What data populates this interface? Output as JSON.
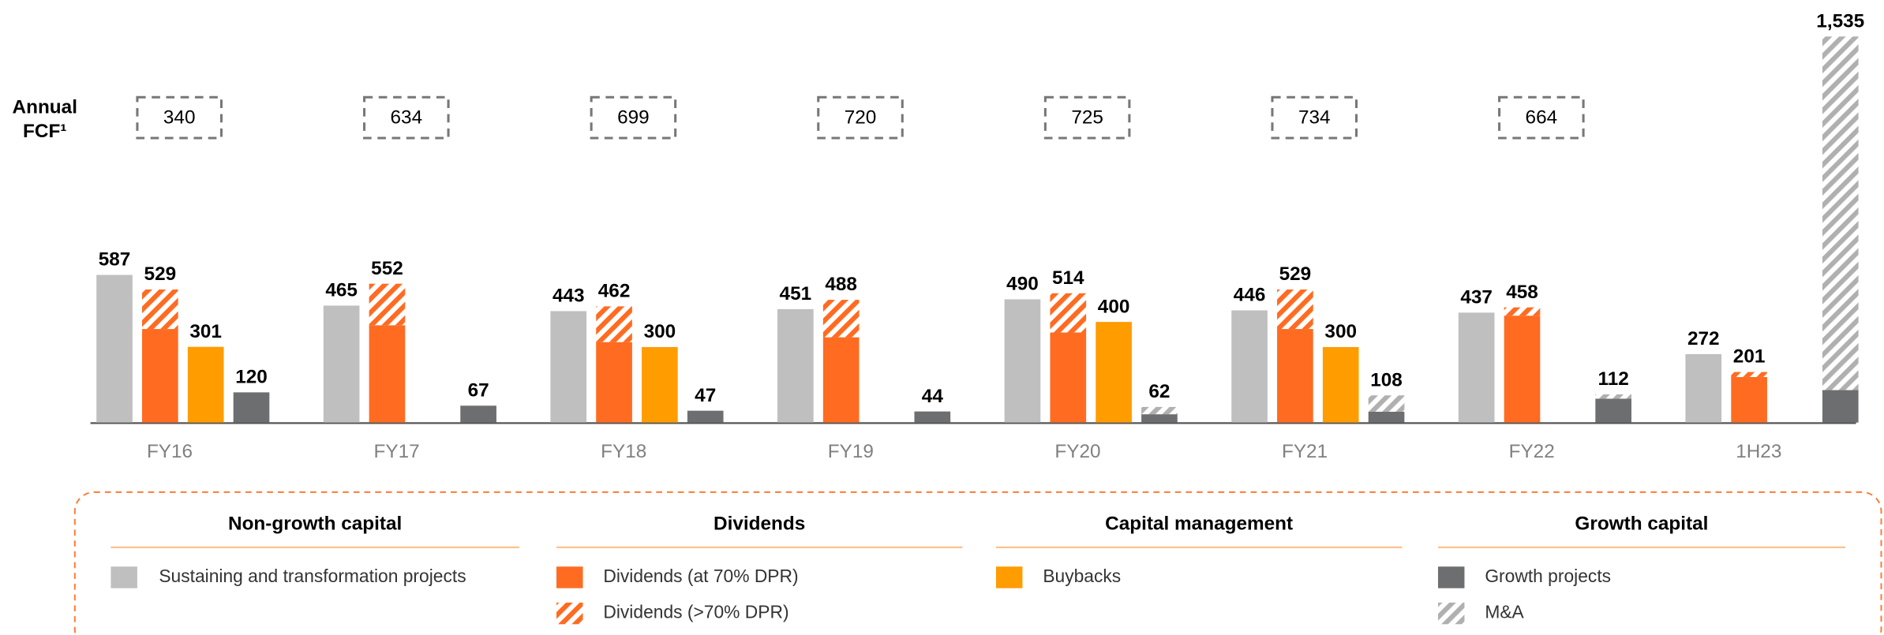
{
  "chart_data": {
    "type": "bar",
    "fcf_label": [
      "Annual",
      "FCF¹"
    ],
    "categories": [
      "FY16",
      "FY17",
      "FY18",
      "FY19",
      "FY20",
      "FY21",
      "FY22",
      "1H23"
    ],
    "fcf": [
      340,
      634,
      699,
      720,
      725,
      734,
      664,
      null
    ],
    "ylim": [
      0,
      1600
    ],
    "groups": [
      {
        "title": "Non-growth capital",
        "series": [
          {
            "name": "Sustaining and transformation projects",
            "color": "#bfbfbf",
            "hatch": false,
            "values": [
              587,
              465,
              443,
              451,
              490,
              446,
              437,
              272
            ]
          }
        ]
      },
      {
        "title": "Dividends",
        "totals": [
          529,
          552,
          462,
          488,
          514,
          529,
          458,
          201
        ],
        "series": [
          {
            "name": "Dividends (at 70% DPR)",
            "color": "#ff6b21",
            "hatch": false,
            "values": [
              372,
              387,
              320,
              339,
              358,
              372,
              425,
              181
            ]
          },
          {
            "name": "Dividends (>70% DPR)",
            "color": "#ff6b21",
            "hatch": true,
            "values": [
              157,
              165,
              142,
              149,
              156,
              157,
              33,
              20
            ]
          }
        ]
      },
      {
        "title": "Capital management",
        "series": [
          {
            "name": "Buybacks",
            "color": "#ff9c00",
            "hatch": false,
            "values": [
              301,
              null,
              300,
              null,
              400,
              300,
              null,
              null
            ]
          }
        ]
      },
      {
        "title": "Growth capital",
        "totals": [
          120,
          67,
          47,
          44,
          62,
          108,
          112,
          1535
        ],
        "value_labels": [
          "120",
          "67",
          "47",
          "44",
          "62",
          "108",
          "112",
          "1,535"
        ],
        "series": [
          {
            "name": "Growth projects",
            "color": "#6d6e70",
            "hatch": false,
            "values": [
              120,
              67,
              47,
              44,
              33,
              43,
              95,
              129
            ]
          },
          {
            "name": "M&A",
            "color": "#b0b0b0",
            "hatch": true,
            "values": [
              null,
              null,
              null,
              null,
              29,
              65,
              17,
              1406
            ]
          }
        ]
      }
    ]
  }
}
